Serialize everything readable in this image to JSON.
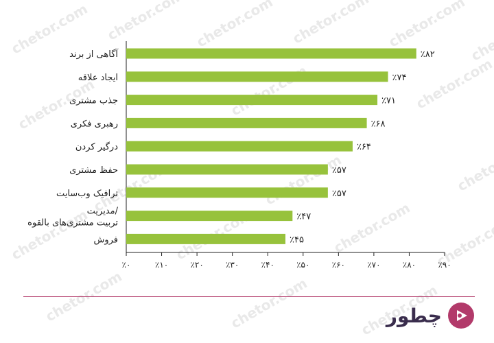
{
  "watermark_text": "chetor.com",
  "brand": {
    "name": "چطور",
    "logo_icon": "chetor-logo-icon"
  },
  "colors": {
    "bar": "#97c23c",
    "axis": "#222222",
    "divider": "#b23a6a",
    "logo": "#b23a6a"
  },
  "chart_data": {
    "type": "bar",
    "orientation": "horizontal",
    "categories": [
      "آگاهی از برند",
      "ایجاد علاقه",
      "جذب مشتری",
      "رهبری فکری",
      "درگیر کردن",
      "حفظ مشتری",
      "ترافیک وب‌سایت",
      "مدیریت/\nتربیت مشتری‌های بالقوه",
      "فروش"
    ],
    "values": [
      82,
      74,
      71,
      68,
      64,
      57,
      57,
      47,
      45
    ],
    "data_labels": [
      "٪۸۲",
      "٪۷۴",
      "٪۷۱",
      "٪۶۸",
      "٪۶۴",
      "٪۵۷",
      "٪۵۷",
      "٪۴۷",
      "٪۴۵"
    ],
    "xlim": [
      0,
      90
    ],
    "x_ticks": [
      0,
      10,
      20,
      30,
      40,
      50,
      60,
      70,
      80,
      90
    ],
    "x_tick_labels": [
      "٪۰",
      "٪۱۰",
      "٪۲۰",
      "٪۳۰",
      "٪۴۰",
      "٪۵۰",
      "٪۶۰",
      "٪۷۰",
      "٪۸۰",
      "٪۹۰"
    ],
    "grid": false,
    "title": "",
    "xlabel": "",
    "ylabel": ""
  }
}
